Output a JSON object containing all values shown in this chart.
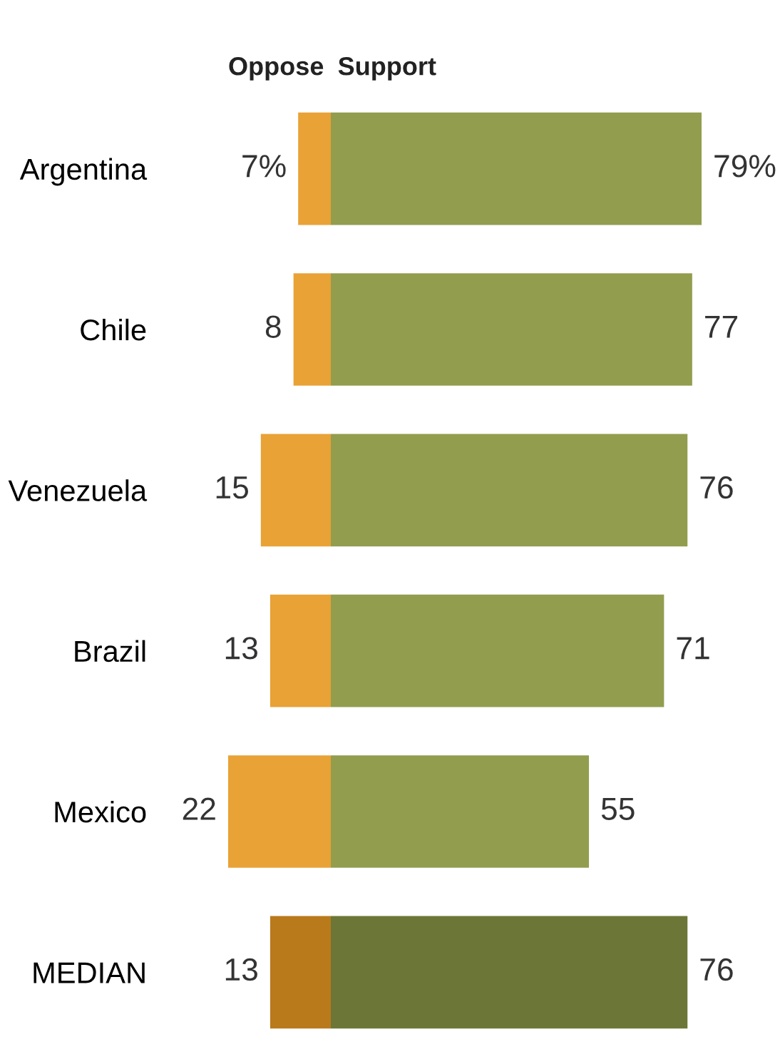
{
  "chart_data": [
    {
      "type": "bar",
      "orientation": "horizontal",
      "categories": [
        "Argentina",
        "Chile",
        "Venezuela",
        "Brazil",
        "Mexico",
        "MEDIAN"
      ],
      "series": [
        {
          "name": "Oppose",
          "values": [
            7,
            8,
            15,
            13,
            22,
            13
          ],
          "colors": [
            "#e9a236",
            "#e9a236",
            "#e9a236",
            "#e9a236",
            "#e9a236",
            "#b97a1c"
          ],
          "value_labels": [
            "7%",
            "8",
            "15",
            "13",
            "22",
            "13"
          ]
        }
      ],
      "xlim": [
        22,
        0
      ],
      "tick_labels": "y",
      "legend": false,
      "grid": false
    },
    {
      "type": "bar",
      "orientation": "horizontal",
      "categories": [
        null,
        null,
        null,
        null,
        null,
        null
      ],
      "series": [
        {
          "name": "Support",
          "values": [
            79,
            77,
            76,
            71,
            55,
            76
          ],
          "colors": [
            "#929d4e",
            "#929d4e",
            "#929d4e",
            "#929d4e",
            "#929d4e",
            "#6c7637"
          ],
          "value_labels": [
            "79%",
            "77",
            "76",
            "71",
            "55",
            "76"
          ]
        }
      ],
      "xlim": [
        0,
        79
      ],
      "tick_labels": false,
      "legend": false,
      "grid": false
    }
  ]
}
